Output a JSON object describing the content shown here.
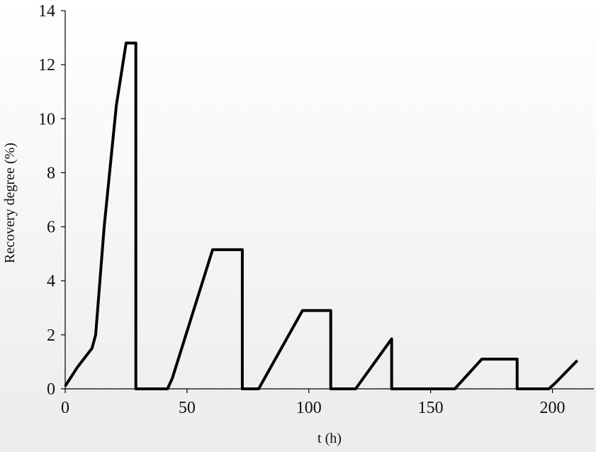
{
  "chart_data": {
    "type": "line",
    "x_label": "t (h)",
    "y_label": "Recovery degree (%)",
    "xlim": [
      0,
      217
    ],
    "xticks": [
      0,
      50,
      100,
      150,
      200
    ],
    "ylim": [
      0,
      14
    ],
    "yticks": [
      0,
      2,
      4,
      6,
      8,
      10,
      12,
      14
    ],
    "series": [
      {
        "color": "#000000",
        "x": [
          0,
          5,
          11,
          12.5,
          16,
          21,
          25,
          29,
          29,
          42,
          44,
          60.5,
          72.7,
          72.7,
          79.4,
          97.4,
          109,
          109,
          119.2,
          134,
          134,
          159.9,
          171,
          185.5,
          185.5,
          198.5,
          201,
          210.2
        ],
        "values": [
          0.1,
          0.8,
          1.5,
          2,
          6,
          10.5,
          12.8,
          12.8,
          0,
          0,
          0.4,
          5.15,
          5.15,
          0,
          0,
          2.9,
          2.9,
          0,
          0,
          1.85,
          0,
          0,
          1.1,
          1.1,
          0,
          0,
          0.2,
          1.05
        ]
      }
    ]
  }
}
